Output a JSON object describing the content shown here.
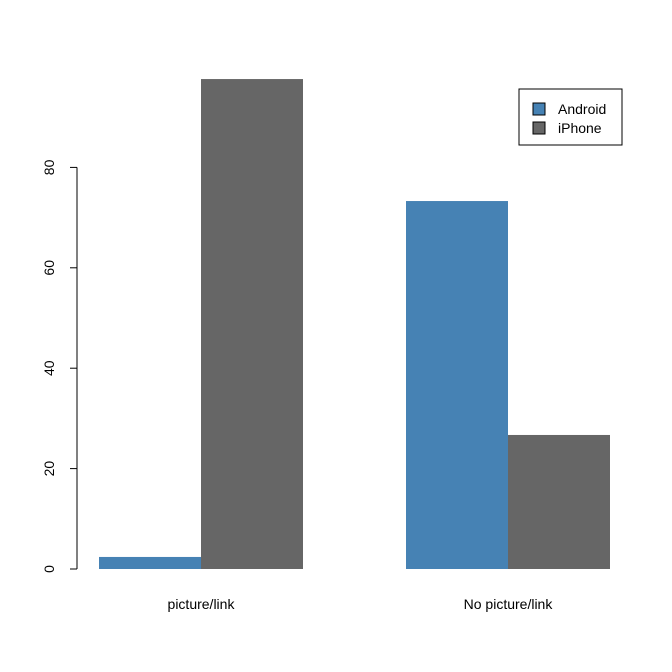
{
  "chart_data": {
    "type": "bar",
    "barmode": "grouped",
    "categories": [
      "picture/link",
      "No picture/link"
    ],
    "series": [
      {
        "name": "Android",
        "color": "#4682B4",
        "values": [
          2.4,
          73.3
        ]
      },
      {
        "name": "iPhone",
        "color": "#666666",
        "values": [
          97.6,
          26.7
        ]
      }
    ],
    "y_ticks": [
      0,
      20,
      40,
      60,
      80
    ],
    "ylim": [
      0,
      97.6
    ],
    "legend_position": "top-right",
    "grid": false,
    "title": "",
    "xlabel": "",
    "ylabel": ""
  }
}
